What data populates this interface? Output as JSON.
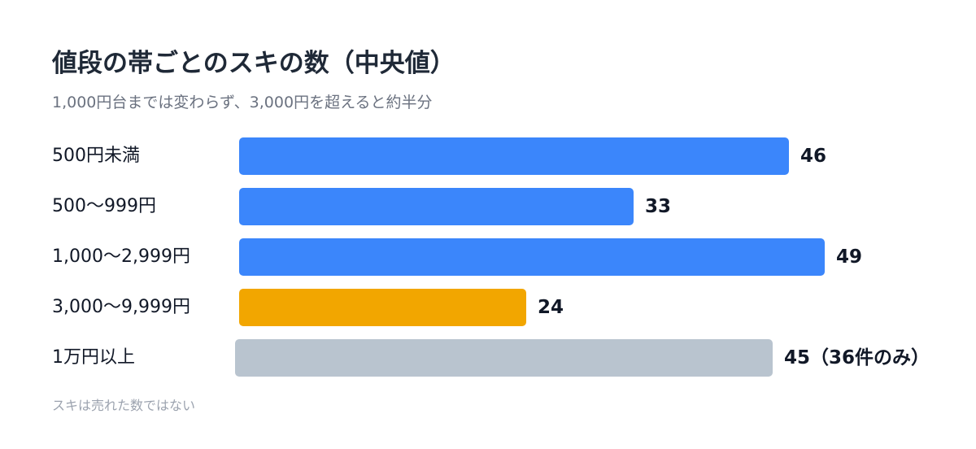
{
  "title": "値段の帯ごとのスキの数（中央値）",
  "subtitle": "1,000円台までは変わらず、3,000円を超えると約半分",
  "footnote": "スキは売れた数ではない",
  "colors": {
    "blue": "#3b86fb",
    "orange": "#f2a600",
    "gray": "#b9c4cf"
  },
  "chart_data": {
    "type": "bar",
    "orientation": "horizontal",
    "title": "値段の帯ごとのスキの数（中央値）",
    "subtitle": "1,000円台までは変わらず、3,000円を超えると約半分",
    "categories": [
      "500円未満",
      "500〜999円",
      "1,000〜2,999円",
      "3,000〜9,999円",
      "1万円以上"
    ],
    "values": [
      46,
      33,
      49,
      24,
      45
    ],
    "value_labels": [
      "46",
      "33",
      "49",
      "24",
      "45（36件のみ）"
    ],
    "bar_colors": [
      "#3b86fb",
      "#3b86fb",
      "#3b86fb",
      "#f2a600",
      "#b9c4cf"
    ],
    "xlim": [
      0,
      49
    ],
    "grid": false,
    "legend": "none"
  }
}
